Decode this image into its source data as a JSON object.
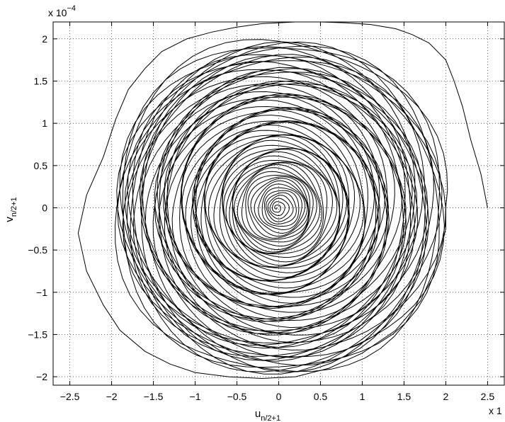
{
  "chart_data": {
    "type": "line",
    "title": "",
    "xlabel": "u",
    "xlabel_sub": "n/2+1",
    "ylabel": "v",
    "ylabel_sub": "n/2+1",
    "x_multiplier": "x 1",
    "y_multiplier_base": "x 10",
    "y_multiplier_exp": "−4",
    "xlim": [
      -2.7,
      2.7
    ],
    "ylim": [
      -2.1,
      2.2
    ],
    "y_scale_note": "y values in units of 1e-4",
    "grid": true,
    "legend": "none",
    "line_color": "#000000",
    "xticks": [
      -2.5,
      -2,
      -1.5,
      -1,
      -0.5,
      0,
      0.5,
      1,
      1.5,
      2,
      2.5
    ],
    "yticks": [
      -2,
      -1.5,
      -1,
      -0.5,
      0,
      0.5,
      1,
      1.5,
      2
    ],
    "xtick_labels": [
      "−2.5",
      "−2",
      "−1.5",
      "−1",
      "−0.5",
      "0",
      "0.5",
      "1",
      "1.5",
      "2",
      "2.5"
    ],
    "ytick_labels": [
      "−2",
      "−1.5",
      "−1",
      "−0.5",
      "0",
      "0.5",
      "1",
      "1.5",
      "2"
    ],
    "series": [
      {
        "description_points": "outer envelope of the spiral trajectory (approximate)",
        "x": [
          2.5,
          2.42,
          2.3,
          2.2,
          2.1,
          2.0,
          1.8,
          1.6,
          1.4,
          1.1,
          0.8,
          0.5,
          0.2,
          -0.2,
          -0.5,
          -0.8,
          -1.1,
          -1.4,
          -1.6,
          -1.8,
          -1.95,
          -2.1,
          -2.3,
          -2.4,
          -2.3,
          -2.1,
          -1.9,
          -1.6,
          -1.3,
          -1.0,
          -0.6,
          -0.2,
          0.2,
          0.6,
          1.0,
          1.4,
          1.7,
          1.9,
          2.0,
          2.0
        ],
        "y": [
          0.0,
          0.4,
          0.8,
          1.2,
          1.5,
          1.75,
          1.95,
          2.05,
          2.12,
          2.17,
          2.19,
          2.2,
          2.2,
          2.18,
          2.14,
          2.08,
          2.0,
          1.85,
          1.65,
          1.4,
          1.05,
          0.6,
          0.15,
          -0.3,
          -0.75,
          -1.15,
          -1.45,
          -1.7,
          -1.85,
          -1.95,
          -2.0,
          -2.02,
          -2.0,
          -1.9,
          -1.72,
          -1.45,
          -1.1,
          -0.65,
          -0.25,
          0.0
        ]
      }
    ]
  }
}
